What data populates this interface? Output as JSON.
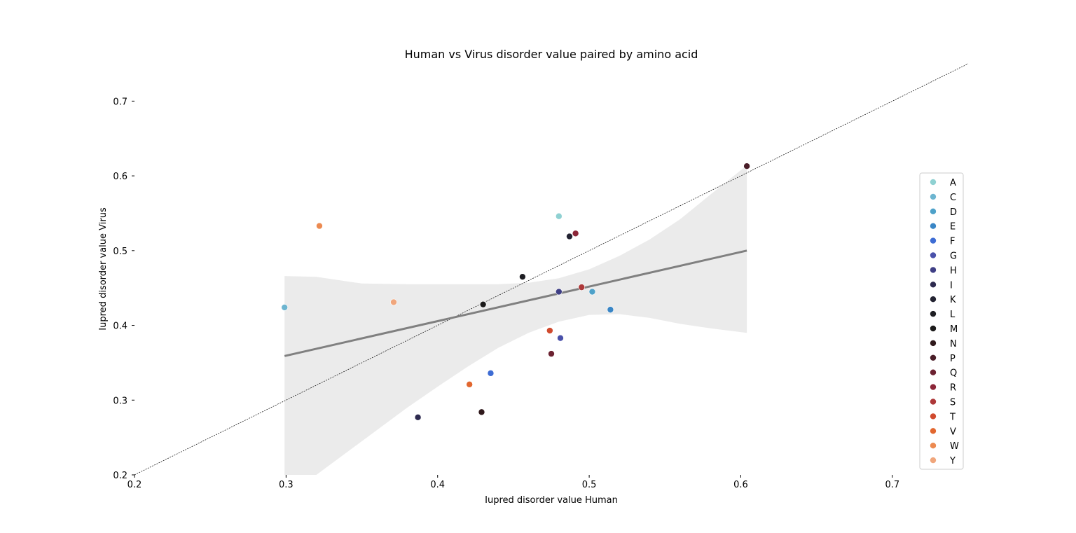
{
  "chart_data": {
    "type": "scatter",
    "title": "Human vs Virus disorder value paired by amino acid",
    "xlabel": "Iupred disorder value Human",
    "ylabel": "Iupred disorder value Virus",
    "xlim": [
      0.2,
      0.75
    ],
    "ylim": [
      0.2,
      0.75
    ],
    "xticks": [
      "0.2",
      "0.3",
      "0.4",
      "0.5",
      "0.6",
      "0.7"
    ],
    "yticks": [
      "0.2",
      "0.3",
      "0.4",
      "0.5",
      "0.6",
      "0.7"
    ],
    "grid": false,
    "legend_position": "right",
    "identity_line": {
      "from": [
        0.2,
        0.2
      ],
      "to": [
        0.75,
        0.75
      ],
      "color": "#000000",
      "style": "dotted"
    },
    "regression": {
      "line": {
        "x": [
          0.299,
          0.604
        ],
        "y": [
          0.359,
          0.5
        ]
      },
      "color": "#808080",
      "confidence_band_color": "#ebebeb",
      "confidence_band": [
        {
          "x": 0.299,
          "lower": 0.2,
          "upper": 0.466
        },
        {
          "x": 0.32,
          "lower": 0.2,
          "upper": 0.465
        },
        {
          "x": 0.35,
          "lower": 0.245,
          "upper": 0.456
        },
        {
          "x": 0.38,
          "lower": 0.29,
          "upper": 0.455
        },
        {
          "x": 0.4,
          "lower": 0.318,
          "upper": 0.455
        },
        {
          "x": 0.42,
          "lower": 0.345,
          "upper": 0.455
        },
        {
          "x": 0.44,
          "lower": 0.37,
          "upper": 0.455
        },
        {
          "x": 0.46,
          "lower": 0.39,
          "upper": 0.457
        },
        {
          "x": 0.48,
          "lower": 0.405,
          "upper": 0.463
        },
        {
          "x": 0.5,
          "lower": 0.414,
          "upper": 0.475
        },
        {
          "x": 0.52,
          "lower": 0.415,
          "upper": 0.493
        },
        {
          "x": 0.54,
          "lower": 0.41,
          "upper": 0.515
        },
        {
          "x": 0.56,
          "lower": 0.402,
          "upper": 0.542
        },
        {
          "x": 0.58,
          "lower": 0.396,
          "upper": 0.575
        },
        {
          "x": 0.604,
          "lower": 0.39,
          "upper": 0.614
        }
      ]
    },
    "points": [
      {
        "label": "A",
        "x": 0.48,
        "y": 0.546,
        "color": "#8fd1d2"
      },
      {
        "label": "C",
        "x": 0.299,
        "y": 0.424,
        "color": "#6db5d0"
      },
      {
        "label": "D",
        "x": 0.502,
        "y": 0.445,
        "color": "#4ea1c9"
      },
      {
        "label": "E",
        "x": 0.514,
        "y": 0.421,
        "color": "#3a86c6"
      },
      {
        "label": "F",
        "x": 0.435,
        "y": 0.336,
        "color": "#3d6cd4"
      },
      {
        "label": "G",
        "x": 0.481,
        "y": 0.383,
        "color": "#4a51aa"
      },
      {
        "label": "H",
        "x": 0.48,
        "y": 0.445,
        "color": "#3f3f85"
      },
      {
        "label": "I",
        "x": 0.387,
        "y": 0.277,
        "color": "#2d2a4f"
      },
      {
        "label": "K",
        "x": 0.487,
        "y": 0.519,
        "color": "#232332"
      },
      {
        "label": "L",
        "x": 0.456,
        "y": 0.465,
        "color": "#1e1e23"
      },
      {
        "label": "M",
        "x": 0.43,
        "y": 0.428,
        "color": "#1c1b1b"
      },
      {
        "label": "N",
        "x": 0.429,
        "y": 0.284,
        "color": "#30191c"
      },
      {
        "label": "P",
        "x": 0.604,
        "y": 0.613,
        "color": "#4a1e28"
      },
      {
        "label": "Q",
        "x": 0.475,
        "y": 0.362,
        "color": "#6c2231"
      },
      {
        "label": "R",
        "x": 0.491,
        "y": 0.523,
        "color": "#8c2638"
      },
      {
        "label": "S",
        "x": 0.495,
        "y": 0.451,
        "color": "#ad3839"
      },
      {
        "label": "T",
        "x": 0.474,
        "y": 0.393,
        "color": "#d04a2e"
      },
      {
        "label": "V",
        "x": 0.421,
        "y": 0.321,
        "color": "#e2672f"
      },
      {
        "label": "W",
        "x": 0.322,
        "y": 0.533,
        "color": "#ec8a51"
      },
      {
        "label": "Y",
        "x": 0.371,
        "y": 0.431,
        "color": "#f0a67c"
      }
    ]
  }
}
